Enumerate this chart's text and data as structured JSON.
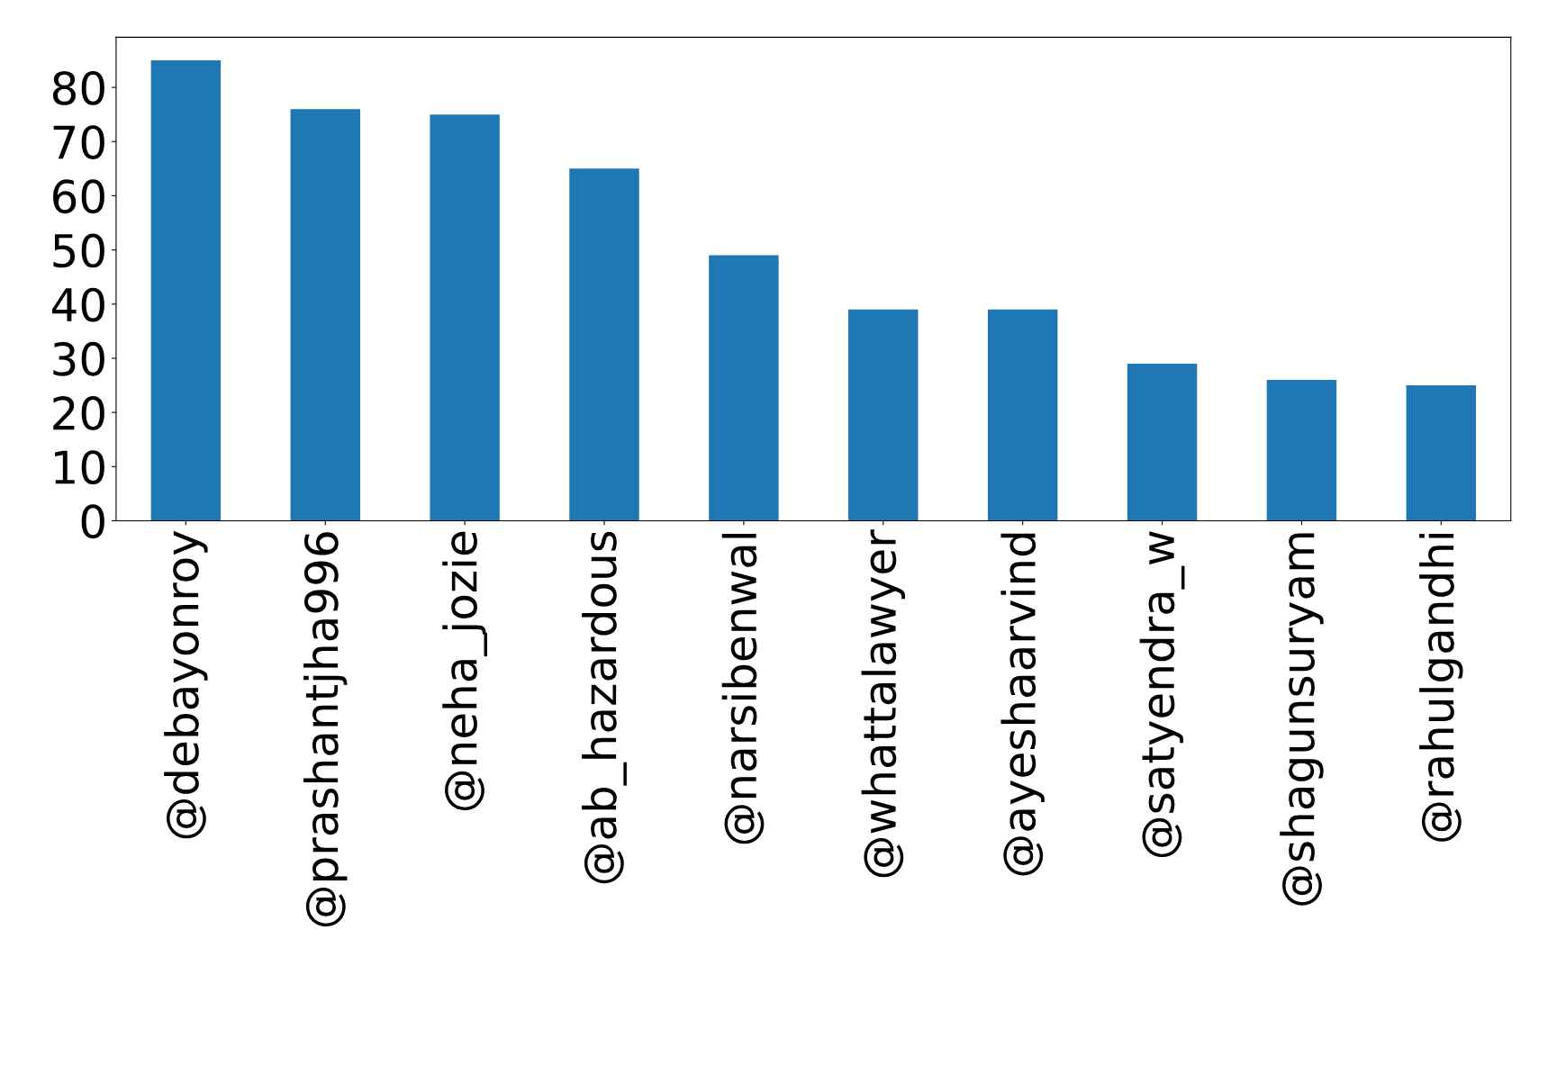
{
  "chart_data": {
    "type": "bar",
    "categories": [
      "@debayonroy",
      "@prashantjha996",
      "@neha_jozie",
      "@ab_hazardous",
      "@narsibenwal",
      "@whattalawyer",
      "@ayeshaarvind",
      "@satyendra_w",
      "@shagunsuryam",
      "@rahulgandhi"
    ],
    "values": [
      85,
      76,
      75,
      65,
      49,
      39,
      39,
      29,
      26,
      25
    ],
    "color": "#1f77b4",
    "ylim": [
      0,
      89.25
    ],
    "yticks": [
      0,
      10,
      20,
      30,
      40,
      50,
      60,
      70,
      80
    ],
    "grid": false
  }
}
